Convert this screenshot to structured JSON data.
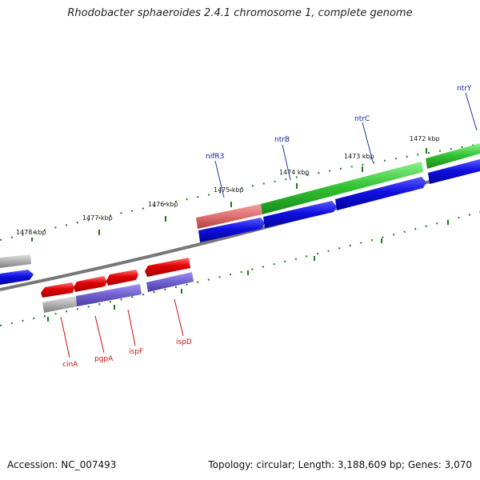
{
  "title": "Rhodobacter sphaeroides 2.4.1 chromosome 1, complete genome",
  "footer": {
    "accession": "Accession: NC_007493",
    "summary": "Topology: circular; Length: 3,188,609 bp; Genes: 3,070"
  },
  "ruler_labels": {
    "k1478": "1478 kbp",
    "k1477": "1477 kbp",
    "k1476": "1476 kbp",
    "k1475": "1475 kbp",
    "k1474": "1474 kbp",
    "k1473": "1473 kbp",
    "k1472": "1472 kbp"
  },
  "genes_top": {
    "nifR3": "nifR3",
    "ntrB": "ntrB",
    "ntrC": "ntrC",
    "ntrY": "ntrY"
  },
  "genes_bottom": {
    "cinA": "cinA",
    "pgpA": "pgpA",
    "ispF": "ispF",
    "ispD": "ispD"
  },
  "colors": {
    "backbone": "#7a7a7a",
    "tick": "#1f7a1f",
    "cds": "#1010e0",
    "cds_light": "#7060d0",
    "gene_red": "#e00000",
    "gene_green": "#30c030",
    "gene_pink": "#e07070",
    "gene_gray": "#b0b0b0"
  }
}
